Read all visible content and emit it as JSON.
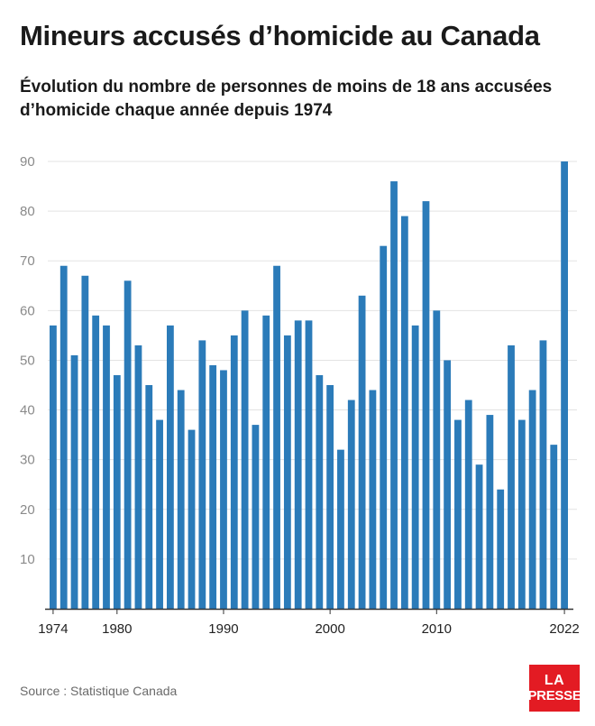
{
  "header": {
    "title": "Mineurs accusés d’homicide au Canada",
    "subtitle": "Évolution du nombre de personnes de moins de 18 ans accusées d’homicide chaque année depuis 1974"
  },
  "footer": {
    "source": "Source : Statistique Canada",
    "logo_line1": "LA",
    "logo_line2": "PRESSE"
  },
  "colors": {
    "bar": "#2b7bb9",
    "logo": "#e31b23",
    "grid": "#e3e3e3",
    "axis": "#333333"
  },
  "chart_data": {
    "type": "bar",
    "title": "Mineurs accusés d’homicide au Canada",
    "subtitle": "Évolution du nombre de personnes de moins de 18 ans accusées d’homicide chaque année depuis 1974",
    "xlabel": "",
    "ylabel": "",
    "ylim": [
      0,
      90
    ],
    "yticks": [
      10,
      20,
      30,
      40,
      50,
      60,
      70,
      80,
      90
    ],
    "xtick_labels": [
      "1974",
      "1980",
      "1990",
      "2000",
      "2010",
      "2022"
    ],
    "grid": true,
    "categories": [
      1974,
      1975,
      1976,
      1977,
      1978,
      1979,
      1980,
      1981,
      1982,
      1983,
      1984,
      1985,
      1986,
      1987,
      1988,
      1989,
      1990,
      1991,
      1992,
      1993,
      1994,
      1995,
      1996,
      1997,
      1998,
      1999,
      2000,
      2001,
      2002,
      2003,
      2004,
      2005,
      2006,
      2007,
      2008,
      2009,
      2010,
      2011,
      2012,
      2013,
      2014,
      2015,
      2016,
      2017,
      2018,
      2019,
      2020,
      2021,
      2022
    ],
    "values": [
      57,
      69,
      51,
      67,
      59,
      57,
      47,
      66,
      53,
      45,
      38,
      57,
      44,
      36,
      54,
      49,
      48,
      55,
      60,
      37,
      59,
      69,
      55,
      58,
      58,
      47,
      45,
      32,
      42,
      63,
      44,
      73,
      86,
      79,
      57,
      82,
      60,
      50,
      38,
      42,
      29,
      39,
      24,
      53,
      38,
      44,
      54,
      33,
      90
    ]
  }
}
